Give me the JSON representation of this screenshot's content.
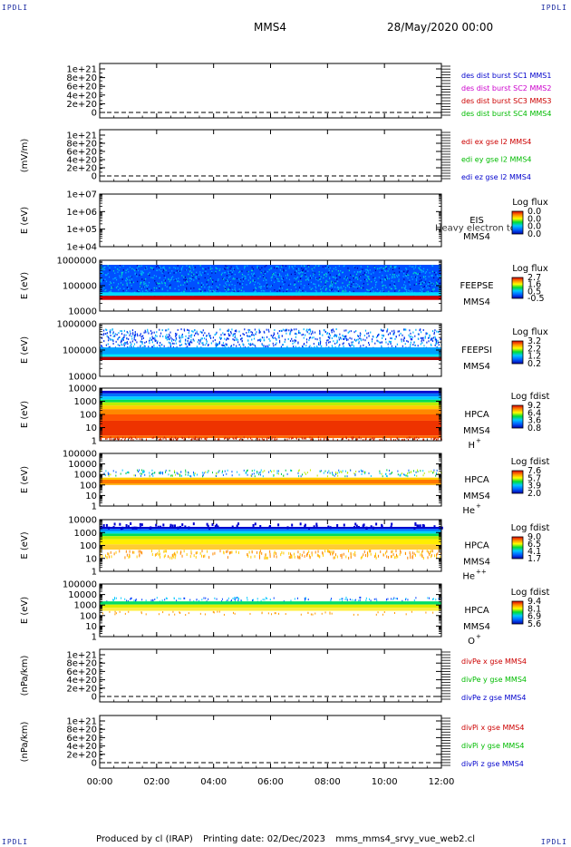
{
  "header": {
    "corner_tl": "IPDLI",
    "corner_tr": "IPDLI",
    "corner_bl": "IPDLI",
    "corner_br": "IPDLI",
    "spacecraft": "MMS4",
    "datetime": "28/May/2020 00:00"
  },
  "footer": {
    "produced_by": "Produced by cl (IRAP)",
    "printing_date": "Printing date: 02/Dec/2023",
    "filename": "mms_mms4_srvy_vue_web2.cl"
  },
  "chart_data": {
    "type": "multi-panel",
    "x_ticks": [
      "00:00",
      "02:00",
      "04:00",
      "06:00",
      "08:00",
      "10:00",
      "12:00"
    ],
    "x_range_hours": [
      0,
      12
    ],
    "panels": [
      {
        "id": "des-dist",
        "type": "line",
        "ylabel": "",
        "ytick_labels": [
          "1e+21",
          "8e+20",
          "6e+20",
          "4e+20",
          "2e+20",
          "0"
        ],
        "zero_line": true,
        "legend": [
          {
            "label": "des dist burst SC1 MMS1",
            "color": "#0000cc"
          },
          {
            "label": "des dist burst SC2 MMS2",
            "color": "#cc00cc"
          },
          {
            "label": "des dist burst SC3 MMS3",
            "color": "#cc0000"
          },
          {
            "label": "des dist burst SC4 MMS4",
            "color": "#00bb00"
          }
        ]
      },
      {
        "id": "edi-e",
        "type": "line",
        "ylabel": "(mV/m)",
        "ytick_labels": [
          "1e+21",
          "8e+20",
          "6e+20",
          "4e+20",
          "2e+20",
          "0"
        ],
        "zero_line": true,
        "legend": [
          {
            "label": "edi ex gse l2 MMS4",
            "color": "#cc0000"
          },
          {
            "label": "edi ey gse l2 MMS4",
            "color": "#00bb00"
          },
          {
            "label": "edi ez gse l2 MMS4",
            "color": "#0000cc"
          }
        ]
      },
      {
        "id": "eis",
        "type": "heatmap",
        "ylabel": "E (eV)",
        "ytick_labels": [
          "1e+07",
          "1e+06",
          "1e+05",
          "1e+04"
        ],
        "fill": "none",
        "instrument": "EIS",
        "spacecraft": "MMS4",
        "overlay_text": "Heavy electron to",
        "colorbar_title": "Log flux",
        "colorbar_ticks": [
          "0.0",
          "0.0",
          "0.0",
          "0.0"
        ]
      },
      {
        "id": "feepse",
        "type": "heatmap",
        "ylabel": "E (eV)",
        "ytick_labels": [
          "1000000",
          "100000",
          "10000"
        ],
        "fill": "feeps-e",
        "instrument": "FEEPSE",
        "spacecraft": "MMS4",
        "colorbar_title": "Log flux",
        "colorbar_ticks": [
          "2.7",
          "1.6",
          "0.5",
          "-0.5"
        ]
      },
      {
        "id": "feepsi",
        "type": "heatmap",
        "ylabel": "E (eV)",
        "ytick_labels": [
          "1000000",
          "100000",
          "10000"
        ],
        "fill": "feeps-i",
        "instrument": "FEEPSI",
        "spacecraft": "MMS4",
        "colorbar_title": "Log flux",
        "colorbar_ticks": [
          "3.2",
          "2.2",
          "1.2",
          "0.2"
        ]
      },
      {
        "id": "hpca-h",
        "type": "heatmap",
        "ylabel": "E (eV)",
        "ytick_labels": [
          "10000",
          "1000",
          "100",
          "10",
          "1"
        ],
        "fill": "hpca-h",
        "instrument": "HPCA",
        "spacecraft": "MMS4",
        "species": "H",
        "species_sup": "+",
        "colorbar_title": "Log fdist",
        "colorbar_ticks": [
          "9.2",
          "6.4",
          "3.6",
          "0.8"
        ]
      },
      {
        "id": "hpca-he",
        "type": "heatmap",
        "ylabel": "E (eV)",
        "ytick_labels": [
          "100000",
          "10000",
          "1000",
          "100",
          "10",
          "1"
        ],
        "fill": "hpca-he",
        "instrument": "HPCA",
        "spacecraft": "MMS4",
        "species": "He",
        "species_sup": "+",
        "colorbar_title": "Log fdist",
        "colorbar_ticks": [
          "7.6",
          "5.7",
          "3.9",
          "2.0"
        ]
      },
      {
        "id": "hpca-hepp",
        "type": "heatmap",
        "ylabel": "E (eV)",
        "ytick_labels": [
          "10000",
          "1000",
          "100",
          "10",
          "1"
        ],
        "fill": "hpca-hepp",
        "instrument": "HPCA",
        "spacecraft": "MMS4",
        "species": "He",
        "species_sup": "++",
        "colorbar_title": "Log fdist",
        "colorbar_ticks": [
          "9.0",
          "6.5",
          "4.1",
          "1.7"
        ]
      },
      {
        "id": "hpca-o",
        "type": "heatmap",
        "ylabel": "E (eV)",
        "ytick_labels": [
          "100000",
          "10000",
          "1000",
          "100",
          "10",
          "1"
        ],
        "fill": "hpca-o",
        "instrument": "HPCA",
        "spacecraft": "MMS4",
        "species": "O",
        "species_sup": "+",
        "colorbar_title": "Log fdist",
        "colorbar_ticks": [
          "9.4",
          "8.1",
          "6.9",
          "5.6"
        ]
      },
      {
        "id": "divpe",
        "type": "line",
        "ylabel": "(nPa/km)",
        "ytick_labels": [
          "1e+21",
          "8e+20",
          "6e+20",
          "4e+20",
          "2e+20",
          "0"
        ],
        "zero_line": true,
        "legend": [
          {
            "label": "divPe x gse MMS4",
            "color": "#cc0000"
          },
          {
            "label": "divPe y gse MMS4",
            "color": "#00bb00"
          },
          {
            "label": "divPe z gse MMS4",
            "color": "#0000cc"
          }
        ]
      },
      {
        "id": "divpi",
        "type": "line",
        "ylabel": "(nPa/km)",
        "ytick_labels": [
          "1e+21",
          "8e+20",
          "6e+20",
          "4e+20",
          "2e+20",
          "0"
        ],
        "zero_line": true,
        "legend": [
          {
            "label": "divPi x gse MMS4",
            "color": "#cc0000"
          },
          {
            "label": "divPi y gse MMS4",
            "color": "#00bb00"
          },
          {
            "label": "divPi z gse MMS4",
            "color": "#0000cc"
          }
        ]
      }
    ]
  }
}
